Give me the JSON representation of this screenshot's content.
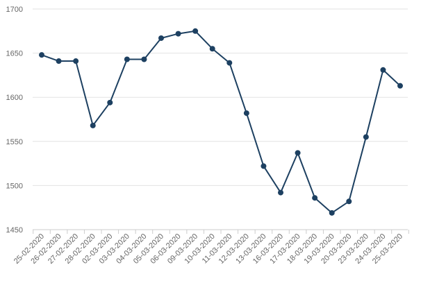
{
  "chart_data": {
    "type": "line",
    "title": "",
    "xlabel": "",
    "ylabel": "",
    "ylim": [
      1450,
      1700
    ],
    "yticks": [
      1450,
      1500,
      1550,
      1600,
      1650,
      1700
    ],
    "grid": true,
    "legend": "none",
    "categories": [
      "25-02-2020",
      "26-02-2020",
      "27-02-2020",
      "28-02-2020",
      "02-03-2020",
      "03-03-2020",
      "04-03-2020",
      "05-03-2020",
      "06-03-2020",
      "09-03-2020",
      "10-03-2020",
      "11-03-2020",
      "12-03-2020",
      "13-03-2020",
      "16-03-2020",
      "17-03-2020",
      "18-03-2020",
      "19-03-2020",
      "20-03-2020",
      "23-03-2020",
      "24-03-2020",
      "25-03-2020"
    ],
    "series": [
      {
        "values": [
          1648,
          1641,
          1641,
          1568,
          1594,
          1643,
          1643,
          1667,
          1672,
          1675,
          1655,
          1639,
          1582,
          1522,
          1492,
          1537,
          1486,
          1469,
          1482,
          1555,
          1631,
          1613
        ]
      }
    ]
  },
  "colors": {
    "line": "#1d4061",
    "marker": "#1d4061",
    "grid": "#e2e2e2",
    "axis": "#cccccc",
    "label": "#666666"
  }
}
